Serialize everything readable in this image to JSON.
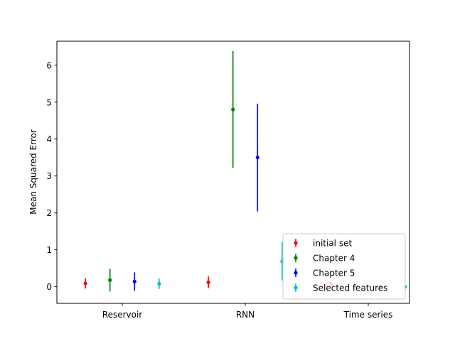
{
  "chart_data": {
    "type": "scatter",
    "title": "",
    "xlabel": "",
    "ylabel": "Mean Squared Error",
    "categories": [
      "Reservoir",
      "RNN",
      "Time series"
    ],
    "ylim": [
      -0.45,
      6.65
    ],
    "yticks": [
      0,
      1,
      2,
      3,
      4,
      5,
      6
    ],
    "grid": false,
    "legend_position": "lower-right",
    "series": [
      {
        "name": "initial set",
        "color": "#ff0000",
        "offset": -0.3,
        "values": [
          0.09,
          0.12,
          0.07
        ],
        "errors": [
          0.14,
          0.16,
          0.06
        ]
      },
      {
        "name": "Chapter 4",
        "color": "#008000",
        "offset": -0.1,
        "values": [
          0.18,
          4.8,
          0.0
        ],
        "errors": [
          0.31,
          1.58,
          0.04
        ]
      },
      {
        "name": "Chapter 5",
        "color": "#0000ff",
        "offset": 0.1,
        "values": [
          0.14,
          3.5,
          0.0
        ],
        "errors": [
          0.25,
          1.46,
          0.04
        ]
      },
      {
        "name": "Selected features",
        "color": "#00bfbf",
        "offset": 0.3,
        "values": [
          0.08,
          0.69,
          0.0
        ],
        "errors": [
          0.14,
          0.52,
          0.04
        ]
      }
    ]
  }
}
